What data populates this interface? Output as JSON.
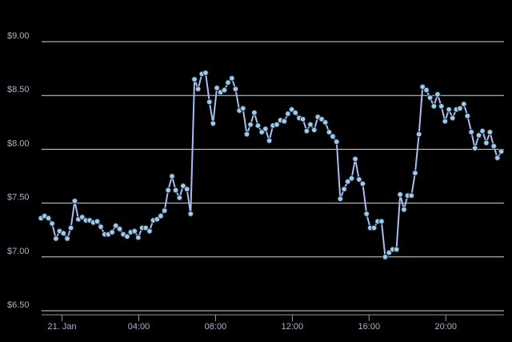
{
  "chart_data": {
    "type": "line",
    "x": [
      -1.1,
      -0.91,
      -0.71,
      -0.52,
      -0.32,
      -0.13,
      0.07,
      0.27,
      0.46,
      0.66,
      0.85,
      1.05,
      1.24,
      1.44,
      1.63,
      1.83,
      2.02,
      2.22,
      2.41,
      2.61,
      2.8,
      3.0,
      3.19,
      3.39,
      3.58,
      3.78,
      3.97,
      4.17,
      4.36,
      4.56,
      4.75,
      4.95,
      5.14,
      5.34,
      5.53,
      5.73,
      5.92,
      6.12,
      6.31,
      6.51,
      6.7,
      6.9,
      7.09,
      7.29,
      7.48,
      7.68,
      7.87,
      8.07,
      8.26,
      8.46,
      8.65,
      8.85,
      9.04,
      9.24,
      9.43,
      9.63,
      9.82,
      10.02,
      10.21,
      10.41,
      10.6,
      10.8,
      10.99,
      11.19,
      11.38,
      11.58,
      11.77,
      11.97,
      12.16,
      12.36,
      12.55,
      12.75,
      12.94,
      13.14,
      13.33,
      13.53,
      13.72,
      13.92,
      14.11,
      14.31,
      14.5,
      14.7,
      14.89,
      15.09,
      15.28,
      15.48,
      15.67,
      15.87,
      16.06,
      16.26,
      16.45,
      16.65,
      16.84,
      17.04,
      17.23,
      17.43,
      17.62,
      17.82,
      18.01,
      18.21,
      18.4,
      18.6,
      18.79,
      18.99,
      19.18,
      19.38,
      19.57,
      19.77,
      19.96,
      20.16,
      20.35,
      20.55,
      20.74,
      20.94,
      21.13,
      21.33,
      21.52,
      21.72,
      21.91,
      22.11,
      22.3,
      22.5,
      22.69,
      22.89
    ],
    "series": [
      {
        "color": "#a9bdf0",
        "marker_color": "#9ecbea",
        "values": [
          7.36,
          7.38,
          7.36,
          7.31,
          7.17,
          7.24,
          7.22,
          7.17,
          7.27,
          7.52,
          7.35,
          7.37,
          7.34,
          7.34,
          7.32,
          7.33,
          7.28,
          7.21,
          7.21,
          7.23,
          7.29,
          7.26,
          7.21,
          7.19,
          7.23,
          7.24,
          7.18,
          7.27,
          7.27,
          7.24,
          7.34,
          7.35,
          7.38,
          7.43,
          7.62,
          7.75,
          7.62,
          7.55,
          7.66,
          7.63,
          7.4,
          8.65,
          8.56,
          8.7,
          8.71,
          8.44,
          8.24,
          8.57,
          8.53,
          8.55,
          8.62,
          8.66,
          8.56,
          8.36,
          8.38,
          8.14,
          8.23,
          8.34,
          8.22,
          8.16,
          8.19,
          8.08,
          8.22,
          8.23,
          8.27,
          8.26,
          8.33,
          8.37,
          8.34,
          8.29,
          8.28,
          8.17,
          8.23,
          8.18,
          8.3,
          8.28,
          8.25,
          8.16,
          8.12,
          8.07,
          7.54,
          7.63,
          7.7,
          7.73,
          7.91,
          7.72,
          7.68,
          7.4,
          7.27,
          7.27,
          7.33,
          7.33,
          7.0,
          7.04,
          7.07,
          7.07,
          7.58,
          7.44,
          7.57,
          7.57,
          7.78,
          8.14,
          8.58,
          8.55,
          8.48,
          8.4,
          8.51,
          8.4,
          8.26,
          8.37,
          8.29,
          8.37,
          8.38,
          8.42,
          8.31,
          8.16,
          8.01,
          8.13,
          8.17,
          8.06,
          8.16,
          8.03,
          7.92,
          7.98
        ]
      }
    ],
    "xlim": [
      -1.15,
      23.45
    ],
    "xticks": [
      {
        "value": 0,
        "label": "21. Jan"
      },
      {
        "value": 4,
        "label": "04:00"
      },
      {
        "value": 8,
        "label": "08:00"
      },
      {
        "value": 12,
        "label": "12:00"
      },
      {
        "value": 16,
        "label": "16:00"
      },
      {
        "value": 20,
        "label": "20:00"
      }
    ],
    "ylim": [
      6.5,
      9.0
    ],
    "yticks": [
      {
        "value": 6.5,
        "label": "$6.50"
      },
      {
        "value": 7.0,
        "label": "$7.00"
      },
      {
        "value": 7.5,
        "label": "$7.50"
      },
      {
        "value": 8.0,
        "label": "$8.00"
      },
      {
        "value": 8.5,
        "label": "$8.50"
      },
      {
        "value": 9.0,
        "label": "$9.00"
      }
    ],
    "grid": true
  }
}
